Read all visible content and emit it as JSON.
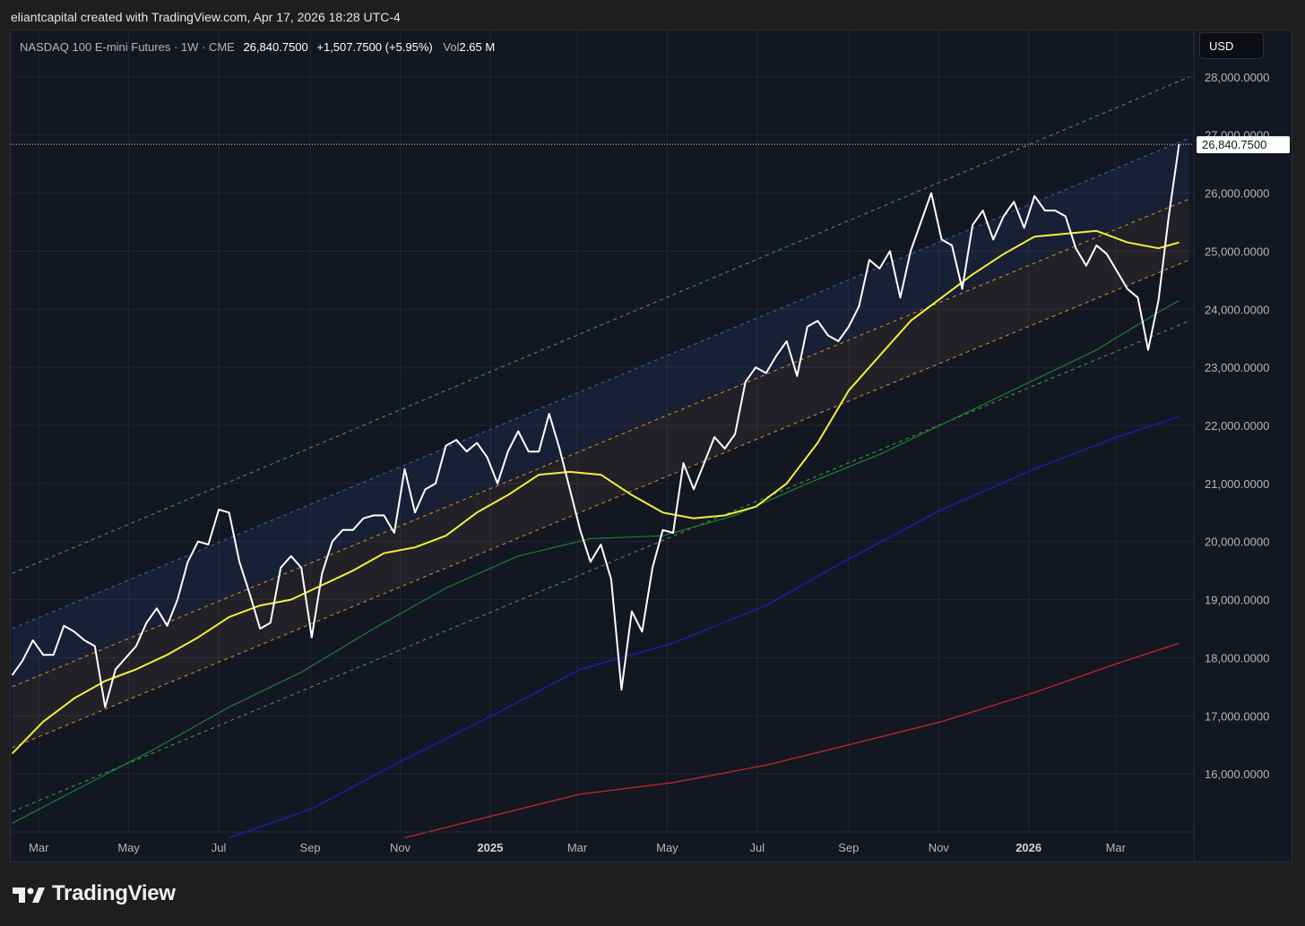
{
  "caption": "eliantcapital created with TradingView.com, Apr 17, 2026 18:28 UTC-4",
  "legend": {
    "symbol": "NASDAQ 100 E-mini Futures · 1W · CME",
    "last": "26,840.7500",
    "change": "+1,507.7500 (+5.95%)",
    "vol_label": "Vol",
    "vol_value": "2.65 M"
  },
  "currency": "USD",
  "brand": "TradingView",
  "last_price_label": "26,840.7500",
  "colors": {
    "background": "#131722",
    "price": "#ffffff",
    "ma_yellow": "#f3ef3c",
    "ma_green": "#1e7d32",
    "ma_blue": "#1a1fa8",
    "ma_red": "#c0262d",
    "channel_green": "#4caf50",
    "channel_blue": "#3a6fd8",
    "channel_orange": "#f59a23"
  },
  "chart_data": {
    "type": "line",
    "ylim": [
      15000,
      28800
    ],
    "y_ticks": [
      16000,
      17000,
      18000,
      19000,
      20000,
      21000,
      22000,
      23000,
      24000,
      25000,
      26000,
      27000,
      28000
    ],
    "y_tick_labels": [
      "16,000.0000",
      "17,000.0000",
      "18,000.0000",
      "19,000.0000",
      "20,000.0000",
      "21,000.0000",
      "22,000.0000",
      "23,000.0000",
      "24,000.0000",
      "25,000.0000",
      "26,000.0000",
      "27,000.0000",
      "28,000.0000"
    ],
    "x_ticks": [
      {
        "date": "2024-03-01",
        "label": "Mar",
        "bold": false
      },
      {
        "date": "2024-05-01",
        "label": "May",
        "bold": false
      },
      {
        "date": "2024-07-01",
        "label": "Jul",
        "bold": false
      },
      {
        "date": "2024-09-01",
        "label": "Sep",
        "bold": false
      },
      {
        "date": "2024-11-01",
        "label": "Nov",
        "bold": false
      },
      {
        "date": "2025-01-01",
        "label": "2025",
        "bold": true
      },
      {
        "date": "2025-03-01",
        "label": "Mar",
        "bold": false
      },
      {
        "date": "2025-05-01",
        "label": "May",
        "bold": false
      },
      {
        "date": "2025-07-01",
        "label": "Jul",
        "bold": false
      },
      {
        "date": "2025-09-01",
        "label": "Sep",
        "bold": false
      },
      {
        "date": "2025-11-01",
        "label": "Nov",
        "bold": false
      },
      {
        "date": "2026-01-01",
        "label": "2026",
        "bold": true
      },
      {
        "date": "2026-03-01",
        "label": "Mar",
        "bold": false
      }
    ],
    "xlim": [
      "2024-02-11",
      "2026-04-23"
    ],
    "last_price": 26840.75,
    "series": [
      {
        "key": "price",
        "style": "price",
        "points": [
          [
            "2024-02-12",
            17700
          ],
          [
            "2024-02-19",
            17950
          ],
          [
            "2024-02-26",
            18300
          ],
          [
            "2024-03-04",
            18050
          ],
          [
            "2024-03-11",
            18050
          ],
          [
            "2024-03-18",
            18550
          ],
          [
            "2024-03-25",
            18450
          ],
          [
            "2024-04-01",
            18300
          ],
          [
            "2024-04-08",
            18200
          ],
          [
            "2024-04-15",
            17150
          ],
          [
            "2024-04-22",
            17800
          ],
          [
            "2024-04-29",
            18000
          ],
          [
            "2024-05-06",
            18200
          ],
          [
            "2024-05-13",
            18600
          ],
          [
            "2024-05-20",
            18850
          ],
          [
            "2024-05-27",
            18550
          ],
          [
            "2024-06-03",
            19000
          ],
          [
            "2024-06-10",
            19650
          ],
          [
            "2024-06-17",
            20000
          ],
          [
            "2024-06-24",
            19950
          ],
          [
            "2024-07-01",
            20550
          ],
          [
            "2024-07-08",
            20500
          ],
          [
            "2024-07-15",
            19650
          ],
          [
            "2024-07-22",
            19100
          ],
          [
            "2024-07-29",
            18500
          ],
          [
            "2024-08-05",
            18600
          ],
          [
            "2024-08-12",
            19550
          ],
          [
            "2024-08-19",
            19750
          ],
          [
            "2024-08-26",
            19550
          ],
          [
            "2024-09-02",
            18350
          ],
          [
            "2024-09-09",
            19450
          ],
          [
            "2024-09-16",
            20000
          ],
          [
            "2024-09-23",
            20200
          ],
          [
            "2024-09-30",
            20200
          ],
          [
            "2024-10-07",
            20400
          ],
          [
            "2024-10-14",
            20450
          ],
          [
            "2024-10-21",
            20450
          ],
          [
            "2024-10-28",
            20150
          ],
          [
            "2024-11-04",
            21250
          ],
          [
            "2024-11-11",
            20500
          ],
          [
            "2024-11-18",
            20900
          ],
          [
            "2024-11-25",
            21000
          ],
          [
            "2024-12-02",
            21650
          ],
          [
            "2024-12-09",
            21750
          ],
          [
            "2024-12-16",
            21550
          ],
          [
            "2024-12-23",
            21700
          ],
          [
            "2024-12-30",
            21450
          ],
          [
            "2025-01-06",
            21000
          ],
          [
            "2025-01-13",
            21550
          ],
          [
            "2025-01-20",
            21900
          ],
          [
            "2025-01-27",
            21550
          ],
          [
            "2025-02-03",
            21550
          ],
          [
            "2025-02-10",
            22200
          ],
          [
            "2025-02-17",
            21600
          ],
          [
            "2025-02-24",
            20900
          ],
          [
            "2025-03-03",
            20200
          ],
          [
            "2025-03-10",
            19650
          ],
          [
            "2025-03-17",
            19950
          ],
          [
            "2025-03-24",
            19350
          ],
          [
            "2025-03-31",
            17450
          ],
          [
            "2025-04-07",
            18800
          ],
          [
            "2025-04-14",
            18450
          ],
          [
            "2025-04-21",
            19550
          ],
          [
            "2025-04-28",
            20200
          ],
          [
            "2025-05-05",
            20150
          ],
          [
            "2025-05-12",
            21350
          ],
          [
            "2025-05-19",
            20900
          ],
          [
            "2025-05-26",
            21350
          ],
          [
            "2025-06-02",
            21800
          ],
          [
            "2025-06-09",
            21600
          ],
          [
            "2025-06-16",
            21850
          ],
          [
            "2025-06-23",
            22750
          ],
          [
            "2025-06-30",
            23000
          ],
          [
            "2025-07-07",
            22900
          ],
          [
            "2025-07-14",
            23200
          ],
          [
            "2025-07-21",
            23450
          ],
          [
            "2025-07-28",
            22850
          ],
          [
            "2025-08-04",
            23700
          ],
          [
            "2025-08-11",
            23800
          ],
          [
            "2025-08-18",
            23550
          ],
          [
            "2025-08-25",
            23450
          ],
          [
            "2025-09-01",
            23700
          ],
          [
            "2025-09-08",
            24050
          ],
          [
            "2025-09-15",
            24850
          ],
          [
            "2025-09-22",
            24700
          ],
          [
            "2025-09-29",
            25000
          ],
          [
            "2025-10-06",
            24200
          ],
          [
            "2025-10-13",
            25000
          ],
          [
            "2025-10-20",
            25500
          ],
          [
            "2025-10-27",
            26000
          ],
          [
            "2025-11-03",
            25200
          ],
          [
            "2025-11-10",
            25100
          ],
          [
            "2025-11-17",
            24350
          ],
          [
            "2025-11-24",
            25450
          ],
          [
            "2025-12-01",
            25700
          ],
          [
            "2025-12-08",
            25200
          ],
          [
            "2025-12-15",
            25600
          ],
          [
            "2025-12-22",
            25850
          ],
          [
            "2025-12-29",
            25400
          ],
          [
            "2026-01-05",
            25950
          ],
          [
            "2026-01-12",
            25700
          ],
          [
            "2026-01-19",
            25700
          ],
          [
            "2026-01-26",
            25600
          ],
          [
            "2026-02-02",
            25050
          ],
          [
            "2026-02-09",
            24750
          ],
          [
            "2026-02-16",
            25100
          ],
          [
            "2026-02-23",
            24950
          ],
          [
            "2026-03-02",
            24650
          ],
          [
            "2026-03-09",
            24350
          ],
          [
            "2026-03-16",
            24200
          ],
          [
            "2026-03-23",
            23300
          ],
          [
            "2026-03-30",
            24150
          ],
          [
            "2026-04-06",
            25600
          ],
          [
            "2026-04-13",
            26840.75
          ]
        ]
      },
      {
        "key": "ma_yellow",
        "style": "ma_yellow",
        "points": [
          [
            "2024-02-12",
            16350
          ],
          [
            "2024-03-04",
            16900
          ],
          [
            "2024-03-25",
            17300
          ],
          [
            "2024-04-15",
            17600
          ],
          [
            "2024-05-06",
            17800
          ],
          [
            "2024-05-27",
            18050
          ],
          [
            "2024-06-17",
            18350
          ],
          [
            "2024-07-08",
            18700
          ],
          [
            "2024-07-29",
            18900
          ],
          [
            "2024-08-19",
            19000
          ],
          [
            "2024-09-09",
            19250
          ],
          [
            "2024-09-30",
            19500
          ],
          [
            "2024-10-21",
            19800
          ],
          [
            "2024-11-11",
            19900
          ],
          [
            "2024-12-02",
            20100
          ],
          [
            "2024-12-23",
            20500
          ],
          [
            "2025-01-13",
            20800
          ],
          [
            "2025-02-03",
            21150
          ],
          [
            "2025-02-24",
            21200
          ],
          [
            "2025-03-17",
            21150
          ],
          [
            "2025-04-07",
            20800
          ],
          [
            "2025-04-28",
            20500
          ],
          [
            "2025-05-19",
            20400
          ],
          [
            "2025-06-09",
            20450
          ],
          [
            "2025-06-30",
            20600
          ],
          [
            "2025-07-21",
            21000
          ],
          [
            "2025-08-11",
            21700
          ],
          [
            "2025-09-01",
            22600
          ],
          [
            "2025-09-22",
            23200
          ],
          [
            "2025-10-13",
            23800
          ],
          [
            "2025-11-03",
            24200
          ],
          [
            "2025-11-24",
            24600
          ],
          [
            "2025-12-15",
            24950
          ],
          [
            "2026-01-05",
            25250
          ],
          [
            "2026-01-26",
            25300
          ],
          [
            "2026-02-16",
            25350
          ],
          [
            "2026-03-09",
            25150
          ],
          [
            "2026-03-30",
            25050
          ],
          [
            "2026-04-13",
            25150
          ]
        ]
      },
      {
        "key": "ma_green",
        "style": "ma_green",
        "points": [
          [
            "2024-02-12",
            15150
          ],
          [
            "2024-04-01",
            15800
          ],
          [
            "2024-05-20",
            16450
          ],
          [
            "2024-07-08",
            17150
          ],
          [
            "2024-08-26",
            17750
          ],
          [
            "2024-10-14",
            18500
          ],
          [
            "2024-12-02",
            19200
          ],
          [
            "2025-01-20",
            19750
          ],
          [
            "2025-03-10",
            20050
          ],
          [
            "2025-04-28",
            20100
          ],
          [
            "2025-06-16",
            20450
          ],
          [
            "2025-08-04",
            21000
          ],
          [
            "2025-09-22",
            21500
          ],
          [
            "2025-11-10",
            22100
          ],
          [
            "2025-12-29",
            22700
          ],
          [
            "2026-02-16",
            23300
          ],
          [
            "2026-03-30",
            23950
          ],
          [
            "2026-04-13",
            24150
          ]
        ]
      },
      {
        "key": "ma_blue",
        "style": "ma_blue",
        "points": [
          [
            "2024-07-08",
            14900
          ],
          [
            "2024-09-02",
            15400
          ],
          [
            "2024-11-04",
            16250
          ],
          [
            "2025-01-06",
            17050
          ],
          [
            "2025-03-03",
            17800
          ],
          [
            "2025-05-05",
            18250
          ],
          [
            "2025-07-07",
            18900
          ],
          [
            "2025-09-01",
            19700
          ],
          [
            "2025-11-03",
            20550
          ],
          [
            "2026-01-05",
            21250
          ],
          [
            "2026-03-02",
            21800
          ],
          [
            "2026-04-13",
            22150
          ]
        ]
      },
      {
        "key": "ma_red",
        "style": "ma_red",
        "points": [
          [
            "2024-11-04",
            14900
          ],
          [
            "2025-01-06",
            15300
          ],
          [
            "2025-03-03",
            15650
          ],
          [
            "2025-05-05",
            15850
          ],
          [
            "2025-07-07",
            16150
          ],
          [
            "2025-09-01",
            16500
          ],
          [
            "2025-11-03",
            16900
          ],
          [
            "2026-01-05",
            17400
          ],
          [
            "2026-03-02",
            17900
          ],
          [
            "2026-04-13",
            18250
          ]
        ]
      }
    ],
    "channel_lines": [
      {
        "key": "upper_green",
        "style": "channel_green",
        "start": [
          "2024-02-12",
          19450
        ],
        "end": [
          "2026-04-20",
          28000
        ]
      },
      {
        "key": "upper_blue",
        "style": "channel_blue",
        "start": [
          "2024-02-12",
          18500
        ],
        "end": [
          "2026-04-20",
          26950
        ]
      },
      {
        "key": "mid_orange_top",
        "style": "channel_orange",
        "start": [
          "2024-02-12",
          17500
        ],
        "end": [
          "2026-04-20",
          25900
        ]
      },
      {
        "key": "mid_orange_bottom",
        "style": "channel_orange",
        "start": [
          "2024-02-12",
          16450
        ],
        "end": [
          "2026-04-20",
          24850
        ]
      },
      {
        "key": "lower_green",
        "style": "channel_green",
        "start": [
          "2024-02-12",
          15350
        ],
        "end": [
          "2026-04-20",
          23800
        ]
      }
    ]
  }
}
